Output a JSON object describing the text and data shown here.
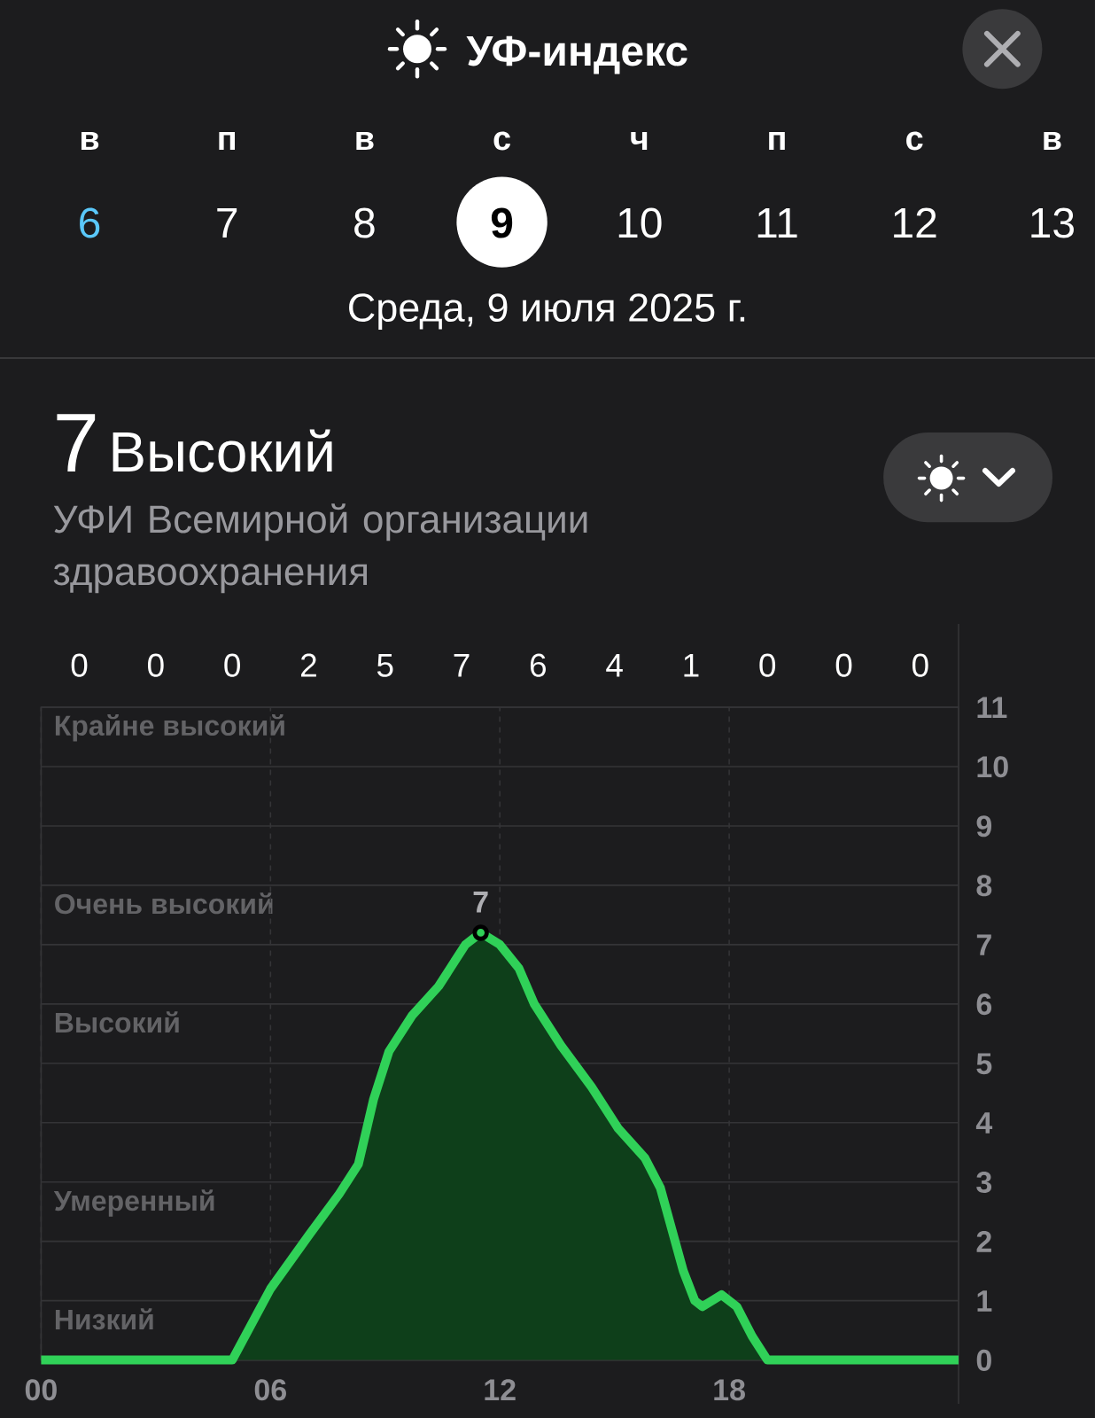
{
  "chart_data": {
    "type": "area",
    "title": "УФ-индекс",
    "subtitle": "Среда, 9 июля 2025 г.",
    "annotations": [
      "в",
      "п",
      "в",
      "с",
      "ч",
      "п",
      "с",
      "в",
      "6",
      "7",
      "8",
      "9",
      "10",
      "11",
      "12",
      "13",
      "7",
      "Высокий",
      "УФИ Всемирной организации здравоохранения",
      "0",
      "0",
      "0",
      "2",
      "5",
      "7",
      "6",
      "4",
      "1",
      "0",
      "0",
      "0",
      "Крайне высокий",
      "Очень высокий",
      "Высокий",
      "Умеренный",
      "Низкий",
      {
        "text": "7",
        "x": 11.5,
        "y": 7.2
      }
    ],
    "x": [
      0,
      5.0,
      6.0,
      7.0,
      7.8,
      8.3,
      8.7,
      9.1,
      9.7,
      10.4,
      10.7,
      11.1,
      11.5,
      12.0,
      12.5,
      12.9,
      13.6,
      14.4,
      15.1,
      15.8,
      16.2,
      16.5,
      16.8,
      17.1,
      17.3,
      17.8,
      18.2,
      18.6,
      19.0,
      24
    ],
    "values": [
      0,
      0,
      1.2,
      2.1,
      2.8,
      3.3,
      4.4,
      5.2,
      5.8,
      6.3,
      6.6,
      7.0,
      7.2,
      7.0,
      6.6,
      6.0,
      5.3,
      4.6,
      3.9,
      3.4,
      2.9,
      2.2,
      1.5,
      1.0,
      0.9,
      1.1,
      0.9,
      0.4,
      0,
      0
    ],
    "color": "#30d158",
    "xlim": [
      0,
      24
    ],
    "xticks": [
      {
        "value": 0,
        "label": "00"
      },
      {
        "value": 6,
        "label": "06"
      },
      12,
      18
    ],
    "ylim": [
      0,
      11
    ],
    "yticks": [
      0,
      1,
      2,
      3,
      4,
      5,
      6,
      7,
      8,
      9,
      10,
      11
    ],
    "grid": true
  }
}
